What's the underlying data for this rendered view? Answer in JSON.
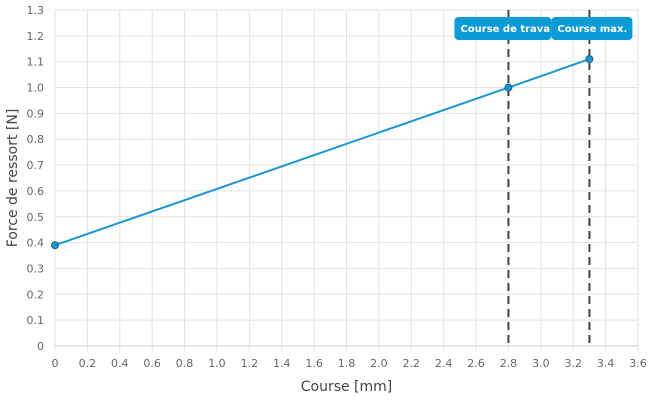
{
  "chart_data": {
    "type": "line",
    "title": "",
    "xlabel": "Course [mm]",
    "ylabel": "Force de ressort [N]",
    "xlim": [
      0,
      3.6
    ],
    "ylim": [
      0,
      1.3
    ],
    "grid": true,
    "x_ticks": [
      "0",
      "0.2",
      "0.4",
      "0.6",
      "0.8",
      "1.0",
      "1.2",
      "1.4",
      "1.6",
      "1.8",
      "2.0",
      "2.2",
      "2.4",
      "2.6",
      "2.8",
      "3.0",
      "3.2",
      "3.4",
      "3.6"
    ],
    "y_ticks": [
      "0",
      "0.1",
      "0.2",
      "0.3",
      "0.4",
      "0.5",
      "0.6",
      "0.7",
      "0.8",
      "0.9",
      "1.0",
      "1.1",
      "1.2",
      "1.3"
    ],
    "series": [
      {
        "color": "#1a96d4",
        "points": [
          {
            "x": 0,
            "y": 0.39
          },
          {
            "x": 2.8,
            "y": 1.0
          },
          {
            "x": 3.3,
            "y": 1.11
          }
        ]
      }
    ],
    "markers": [
      {
        "x": 2.8,
        "label": "Course de travail"
      },
      {
        "x": 3.3,
        "label": "Course max."
      }
    ],
    "label_color": "#0b9bd6"
  }
}
